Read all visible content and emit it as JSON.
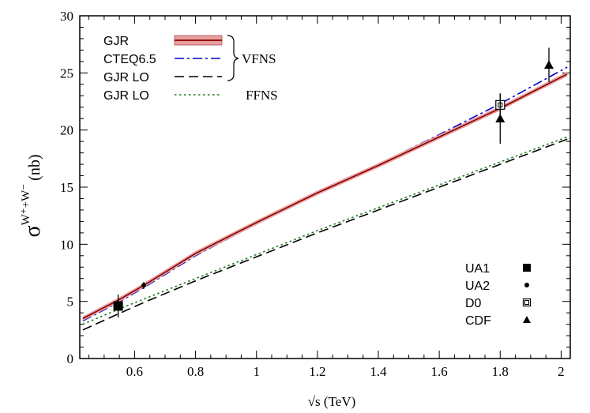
{
  "chart_data": {
    "type": "line",
    "title": "",
    "xlabel": "√s (TeV)",
    "ylabel": {
      "symbol": "σ",
      "superscript": "W⁺+W⁻",
      "unit": "(nb)"
    },
    "xlim": [
      0.42,
      2.03
    ],
    "ylim": [
      0,
      30
    ],
    "x_ticks": [
      0.6,
      0.8,
      1,
      1.2,
      1.4,
      1.6,
      1.8,
      2
    ],
    "x_tick_labels": [
      "0.6",
      "0.8",
      "1",
      "1.2",
      "1.4",
      "1.6",
      "1.8",
      "2"
    ],
    "y_ticks": [
      0,
      5,
      10,
      15,
      20,
      25,
      30
    ],
    "y_tick_labels": [
      "0",
      "5",
      "10",
      "15",
      "20",
      "25",
      "30"
    ],
    "grid": false,
    "series": [
      {
        "name": "GJR",
        "style": "solid-band",
        "color": "#8b0000",
        "band_color": "#e8a0a0",
        "x": [
          0.43,
          0.546,
          0.63,
          0.8,
          1.0,
          1.2,
          1.4,
          1.6,
          1.8,
          2.02
        ],
        "y": [
          3.5,
          5.1,
          6.4,
          9.2,
          11.9,
          14.5,
          16.9,
          19.4,
          21.9,
          24.9
        ],
        "band_halfwidth": 0.2
      },
      {
        "name": "CTEQ6.5",
        "style": "dash-dot",
        "color": "#0000cc",
        "x": [
          0.43,
          0.546,
          0.63,
          0.8,
          1.0,
          1.2,
          1.4,
          1.6,
          1.8,
          2.02
        ],
        "y": [
          3.3,
          4.9,
          6.2,
          9.0,
          11.8,
          14.4,
          17.0,
          19.6,
          22.3,
          25.5
        ]
      },
      {
        "name": "GJR LO",
        "style": "dashed",
        "color": "#000000",
        "x": [
          0.43,
          0.546,
          0.63,
          0.8,
          1.0,
          1.2,
          1.4,
          1.6,
          1.8,
          2.02
        ],
        "y": [
          2.5,
          3.9,
          4.9,
          6.8,
          8.9,
          11.0,
          13.0,
          15.0,
          17.0,
          19.2
        ]
      },
      {
        "name": "GJR LO",
        "style": "dotted",
        "color": "#1a7a1a",
        "x": [
          0.43,
          0.546,
          0.63,
          0.8,
          1.0,
          1.2,
          1.4,
          1.6,
          1.8,
          2.02
        ],
        "y": [
          3.0,
          4.3,
          5.2,
          7.0,
          9.1,
          11.2,
          13.2,
          15.2,
          17.2,
          19.4
        ]
      }
    ],
    "legend_schemes": {
      "vfns": "VFNS",
      "ffns": "FFNS"
    },
    "data_points": [
      {
        "name": "UA1",
        "marker": "filled-square",
        "x": 0.546,
        "y": 4.6,
        "err": 1.0
      },
      {
        "name": "UA2",
        "marker": "dot",
        "x": 0.63,
        "y": 6.4,
        "err": 0.3
      },
      {
        "name": "D0",
        "marker": "open-square",
        "x": 1.8,
        "y": 22.2,
        "err": 1.0
      },
      {
        "name": "CDF",
        "marker": "filled-triangle",
        "x": 1.8,
        "y": 21.0,
        "err": 2.2
      },
      {
        "name": "CDF",
        "marker": "filled-triangle",
        "x": 1.96,
        "y": 25.7,
        "err": 1.5
      }
    ],
    "marker_legend": [
      {
        "label": "UA1",
        "marker": "filled-square"
      },
      {
        "label": "UA2",
        "marker": "dot"
      },
      {
        "label": "D0",
        "marker": "open-square"
      },
      {
        "label": "CDF",
        "marker": "filled-triangle"
      }
    ]
  }
}
